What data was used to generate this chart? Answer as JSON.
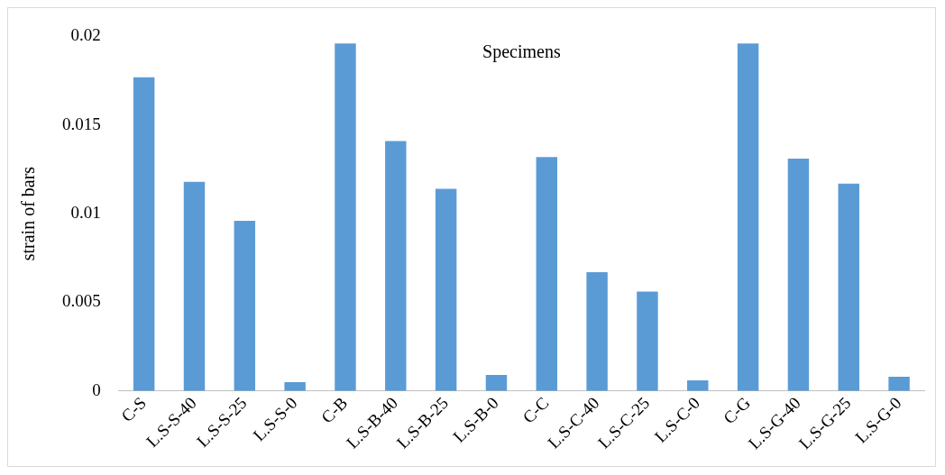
{
  "chart_data": {
    "type": "bar",
    "ylabel": "strain of bars",
    "annotations": [
      "Specimens"
    ],
    "categories": [
      "C-S",
      "L.S-S-40",
      "L.S-S-25",
      "L.S-S-0",
      "C-B",
      "L.S-B-40",
      "L.S-B-25",
      "L.S-B-0",
      "C-C",
      "L.S-C-40",
      "L.S-C-25",
      "L.S-C-0",
      "C-G",
      "L.S-G-40",
      "L.S-G-25",
      "L.S-G-0"
    ],
    "values": [
      0.0177,
      0.0118,
      0.0096,
      0.0005,
      0.0196,
      0.0141,
      0.0114,
      0.0009,
      0.0132,
      0.0067,
      0.0056,
      0.0006,
      0.0196,
      0.0131,
      0.0117,
      0.0008
    ],
    "color": "#5b9bd5",
    "ylim": [
      0,
      0.02
    ],
    "yticks": [
      0,
      0.005,
      0.01,
      0.015,
      0.02
    ],
    "grid": false,
    "legend": false
  }
}
